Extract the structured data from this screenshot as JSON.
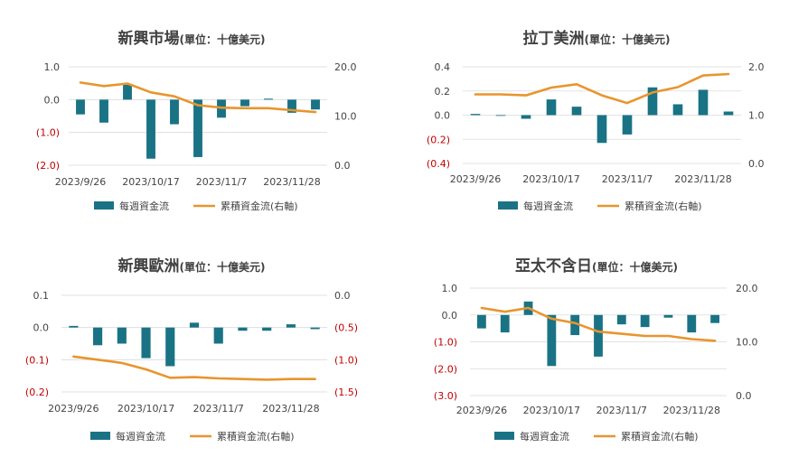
{
  "colors": {
    "bar": "#1a7385",
    "line": "#e8952e",
    "neg": "#c00000",
    "text": "#444444",
    "grid": "#d9d9d9"
  },
  "chart_data": [
    {
      "type": "bar+line",
      "title": "新興市場",
      "unit": "(單位：十億美元)",
      "xticks": [
        "2023/9/26",
        "2023/10/17",
        "2023/11/7",
        "2023/11/28"
      ],
      "left_axis": {
        "ticks": [
          "1.0",
          "0.0",
          "(1.0)",
          "(2.0)"
        ],
        "ylim": [
          -2.0,
          1.0
        ]
      },
      "right_axis": {
        "ticks": [
          "20.0",
          "10.0",
          "0.0"
        ],
        "ylim": [
          0,
          20
        ]
      },
      "series": [
        {
          "name": "每週資金流",
          "kind": "bar",
          "axis": "left",
          "values": [
            -0.45,
            -0.7,
            0.45,
            -1.8,
            -0.75,
            -1.75,
            -0.55,
            -0.2,
            0.03,
            -0.4,
            -0.3
          ]
        },
        {
          "name": "累積資金流(右軸)",
          "kind": "line",
          "axis": "right",
          "values": [
            16.8,
            16.1,
            16.6,
            14.8,
            14.0,
            12.2,
            11.7,
            11.6,
            11.6,
            11.2,
            10.8
          ]
        }
      ],
      "legend": [
        "每週資金流",
        "累積資金流(右軸)"
      ]
    },
    {
      "type": "bar+line",
      "title": "拉丁美洲",
      "unit": "(單位：十億美元)",
      "xticks": [
        "2023/9/26",
        "2023/10/17",
        "2023/11/7",
        "2023/11/28"
      ],
      "left_axis": {
        "ticks": [
          "0.4",
          "0.2",
          "0.0",
          "(0.2)",
          "(0.4)"
        ],
        "ylim": [
          -0.4,
          0.4
        ]
      },
      "right_axis": {
        "ticks": [
          "2.0",
          "1.0",
          "0.0"
        ],
        "ylim": [
          0,
          2
        ]
      },
      "series": [
        {
          "name": "每週資金流",
          "kind": "bar",
          "axis": "left",
          "values": [
            0.01,
            0.0,
            -0.03,
            0.13,
            0.07,
            -0.23,
            -0.16,
            0.23,
            0.09,
            0.21,
            0.03
          ]
        },
        {
          "name": "累積資金流(右軸)",
          "kind": "line",
          "axis": "right",
          "values": [
            1.43,
            1.43,
            1.41,
            1.57,
            1.64,
            1.41,
            1.25,
            1.47,
            1.58,
            1.82,
            1.85
          ]
        }
      ],
      "legend": [
        "每週資金流",
        "累積資金流(右軸)"
      ]
    },
    {
      "type": "bar+line",
      "title": "新興歐洲",
      "unit": "(單位：十億美元)",
      "xticks": [
        "2023/9/26",
        "2023/10/17",
        "2023/11/7",
        "2023/11/28"
      ],
      "left_axis": {
        "ticks": [
          "0.1",
          "0.0",
          "(0.1)",
          "(0.2)"
        ],
        "ylim": [
          -0.2,
          0.1
        ]
      },
      "right_axis": {
        "ticks": [
          "0.0",
          "(0.5)",
          "(1.0)",
          "(1.5)"
        ],
        "ylim": [
          -1.5,
          0.0
        ]
      },
      "series": [
        {
          "name": "每週資金流",
          "kind": "bar",
          "axis": "left",
          "values": [
            0.005,
            -0.055,
            -0.05,
            -0.095,
            -0.12,
            0.015,
            -0.05,
            -0.01,
            -0.01,
            0.01,
            -0.005
          ]
        },
        {
          "name": "累積資金流(右軸)",
          "kind": "line",
          "axis": "right",
          "values": [
            -0.95,
            -1.0,
            -1.05,
            -1.15,
            -1.28,
            -1.27,
            -1.29,
            -1.3,
            -1.31,
            -1.3,
            -1.3
          ]
        }
      ],
      "legend": [
        "每週資金流",
        "累積資金流(右軸)"
      ]
    },
    {
      "type": "bar+line",
      "title": "亞太不含日",
      "unit": "(單位：十億美元)",
      "xticks": [
        "2023/9/26",
        "2023/10/17",
        "2023/11/7",
        "2023/11/28"
      ],
      "left_axis": {
        "ticks": [
          "1.0",
          "0.0",
          "(1.0)",
          "(2.0)",
          "(3.0)"
        ],
        "ylim": [
          -3.0,
          1.0
        ]
      },
      "right_axis": {
        "ticks": [
          "20.0",
          "10.0",
          "0.0"
        ],
        "ylim": [
          0,
          20
        ]
      },
      "series": [
        {
          "name": "每週資金流",
          "kind": "bar",
          "axis": "left",
          "values": [
            -0.5,
            -0.65,
            0.5,
            -1.9,
            -0.75,
            -1.55,
            -0.35,
            -0.45,
            -0.1,
            -0.65,
            -0.3
          ]
        },
        {
          "name": "累積資金流(右軸)",
          "kind": "line",
          "axis": "right",
          "values": [
            16.3,
            15.6,
            16.3,
            14.3,
            13.5,
            11.9,
            11.5,
            11.1,
            11.1,
            10.5,
            10.2
          ]
        }
      ],
      "legend": [
        "每週資金流",
        "累積資金流(右軸)"
      ]
    }
  ]
}
